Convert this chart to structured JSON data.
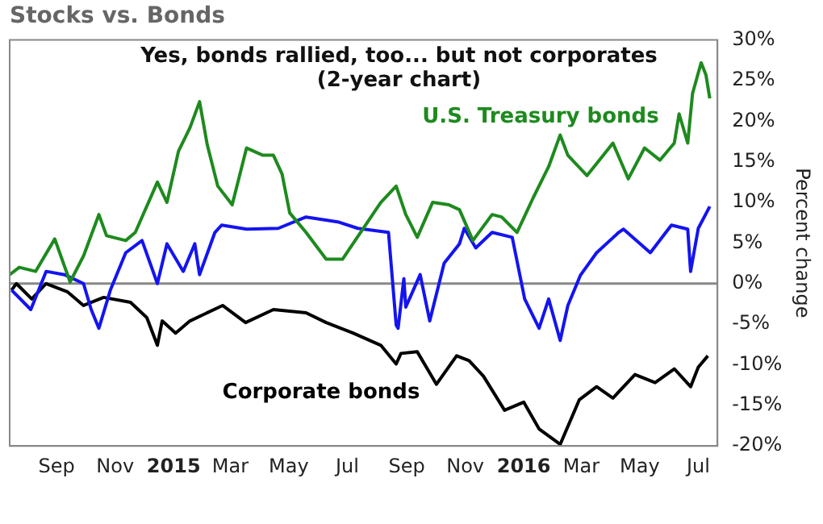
{
  "chart_data": {
    "type": "line",
    "title": "Stocks vs. Bonds",
    "ylabel": "Percent change",
    "annotations": [
      "Yes, bonds rallied, too... but not corporates (2-year chart)"
    ],
    "xlim": [
      "2014-07-14",
      "2016-07-21"
    ],
    "xticks": [
      {
        "value": "2014-09-01",
        "label": "Sep"
      },
      {
        "value": "2014-11-01",
        "label": "Nov"
      },
      {
        "value": "2015-01-01",
        "label": "2015"
      },
      {
        "value": "2015-03-01",
        "label": "Mar"
      },
      {
        "value": "2015-05-01",
        "label": "May"
      },
      {
        "value": "2015-07-01",
        "label": "Jul"
      },
      {
        "value": "2015-09-01",
        "label": "Sep"
      },
      {
        "value": "2015-11-01",
        "label": "Nov"
      },
      {
        "value": "2016-01-01",
        "label": "2016"
      },
      {
        "value": "2016-03-01",
        "label": "Mar"
      },
      {
        "value": "2016-05-01",
        "label": "May"
      },
      {
        "value": "2016-07-01",
        "label": "Jul"
      }
    ],
    "ylim": [
      -20,
      30
    ],
    "yticks": [
      {
        "value": -20,
        "label": "-20%"
      },
      {
        "value": -15,
        "label": "-15%"
      },
      {
        "value": -10,
        "label": "-10%"
      },
      {
        "value": -5,
        "label": "-5%"
      },
      {
        "value": 0,
        "label": "0%"
      },
      {
        "value": 5,
        "label": "5%"
      },
      {
        "value": 10,
        "label": "10%"
      },
      {
        "value": 15,
        "label": "15%"
      },
      {
        "value": 20,
        "label": "20%"
      },
      {
        "value": 25,
        "label": "25%"
      },
      {
        "value": 30,
        "label": "30%"
      }
    ],
    "grid": false,
    "legend": false,
    "marker": "none",
    "line_style": "solid",
    "ref_lines": [
      {
        "axis": "y",
        "value": 0,
        "color": "#888888"
      }
    ],
    "series": [
      {
        "name": "U.S. Treasury bonds",
        "color": "#1e8a1e",
        "x": [
          "2014-07-14",
          "2014-07-24",
          "2014-08-10",
          "2014-08-30",
          "2014-09-15",
          "2014-09-29",
          "2014-10-15",
          "2014-10-23",
          "2014-11-12",
          "2014-11-22",
          "2014-12-15",
          "2014-12-25",
          "2015-01-06",
          "2015-01-18",
          "2015-01-28",
          "2015-02-05",
          "2015-02-16",
          "2015-03-03",
          "2015-03-18",
          "2015-04-04",
          "2015-04-15",
          "2015-04-24",
          "2015-05-02",
          "2015-05-19",
          "2015-06-09",
          "2015-06-26",
          "2015-08-05",
          "2015-08-21",
          "2015-08-31",
          "2015-09-12",
          "2015-09-28",
          "2015-10-15",
          "2015-10-26",
          "2015-11-09",
          "2015-11-29",
          "2015-12-09",
          "2015-12-25",
          "2016-01-11",
          "2016-01-27",
          "2016-02-08",
          "2016-02-16",
          "2016-03-07",
          "2016-03-24",
          "2016-04-03",
          "2016-04-19",
          "2016-05-06",
          "2016-05-22",
          "2016-06-06",
          "2016-06-11",
          "2016-06-20",
          "2016-06-25",
          "2016-07-04",
          "2016-07-09",
          "2016-07-13"
        ],
        "values": [
          1.1,
          2,
          1.5,
          5.5,
          0.2,
          3.4,
          8.5,
          5.9,
          5.3,
          6.3,
          12.5,
          10,
          16.3,
          19.2,
          22.4,
          17.1,
          12,
          9.7,
          16.7,
          15.8,
          15.8,
          13.5,
          8.7,
          6.3,
          3,
          3,
          10,
          12,
          8.5,
          5.7,
          10,
          9.7,
          9.1,
          5.3,
          8.5,
          8.2,
          6.3,
          10.6,
          14.4,
          18.3,
          15.8,
          13.3,
          15.8,
          17.3,
          12.9,
          16.7,
          15.2,
          17.3,
          20.9,
          17.3,
          23.4,
          27.2,
          25.7,
          22.8
        ]
      },
      {
        "color": "#1414f0",
        "x": [
          "2014-07-16",
          "2014-08-05",
          "2014-08-21",
          "2014-09-09",
          "2014-09-29",
          "2014-10-07",
          "2014-10-15",
          "2014-10-27",
          "2014-11-12",
          "2014-11-29",
          "2014-12-15",
          "2014-12-25",
          "2015-01-11",
          "2015-01-23",
          "2015-01-28",
          "2015-02-13",
          "2015-02-20",
          "2015-03-18",
          "2015-04-20",
          "2015-05-19",
          "2015-06-21",
          "2015-07-12",
          "2015-08-13",
          "2015-08-21",
          "2015-08-23",
          "2015-08-29",
          "2015-08-31",
          "2015-09-15",
          "2015-09-25",
          "2015-10-10",
          "2015-10-26",
          "2015-10-31",
          "2015-11-12",
          "2015-11-29",
          "2015-12-20",
          "2016-01-02",
          "2016-01-17",
          "2016-01-27",
          "2016-02-08",
          "2016-02-16",
          "2016-02-29",
          "2016-03-17",
          "2016-04-09",
          "2016-04-14",
          "2016-05-12",
          "2016-06-03",
          "2016-06-20",
          "2016-06-23",
          "2016-07-01",
          "2016-07-13"
        ],
        "values": [
          -0.8,
          -3.2,
          1.5,
          1.1,
          0,
          -3.2,
          -5.5,
          -0.8,
          3.8,
          5.3,
          0,
          4.9,
          1.5,
          4.9,
          1.1,
          6.3,
          7.2,
          6.7,
          6.8,
          8.2,
          7.6,
          6.8,
          6.3,
          -5.1,
          -5.5,
          0.6,
          -2.9,
          1.1,
          -4.6,
          2.5,
          4.9,
          6.8,
          4.4,
          6.3,
          5.7,
          -1.9,
          -5.5,
          -1.9,
          -7,
          -2.7,
          1,
          3.8,
          6.3,
          6.7,
          3.8,
          7.2,
          6.7,
          1.5,
          6.8,
          9.5
        ]
      },
      {
        "name": "Corporate bonds",
        "color": "#000000",
        "x": [
          "2014-07-16",
          "2014-07-21",
          "2014-08-06",
          "2014-08-21",
          "2014-09-12",
          "2014-09-29",
          "2014-10-20",
          "2014-11-17",
          "2014-12-04",
          "2014-12-15",
          "2014-12-20",
          "2015-01-03",
          "2015-01-18",
          "2015-02-21",
          "2015-03-17",
          "2015-04-15",
          "2015-05-19",
          "2015-06-09",
          "2015-07-07",
          "2015-08-05",
          "2015-08-21",
          "2015-08-26",
          "2015-09-12",
          "2015-10-02",
          "2015-10-23",
          "2015-11-05",
          "2015-11-20",
          "2015-12-12",
          "2016-01-01",
          "2016-01-17",
          "2016-02-08",
          "2016-02-28",
          "2016-03-17",
          "2016-04-03",
          "2016-04-26",
          "2016-05-17",
          "2016-06-06",
          "2016-06-23",
          "2016-07-01",
          "2016-07-11"
        ],
        "values": [
          -0.8,
          0,
          -1.9,
          0,
          -1,
          -2.7,
          -1.7,
          -2.3,
          -4.2,
          -7.6,
          -4.6,
          -6.1,
          -4.6,
          -2.7,
          -4.8,
          -3.2,
          -3.6,
          -4.8,
          -6.1,
          -7.6,
          -9.9,
          -8.6,
          -8.4,
          -12.4,
          -8.9,
          -9.5,
          -11.4,
          -15.6,
          -14.6,
          -17.9,
          -19.8,
          -14.3,
          -12.7,
          -14.1,
          -11.2,
          -12.2,
          -10.5,
          -12.7,
          -10.3,
          -8.9
        ]
      }
    ]
  }
}
